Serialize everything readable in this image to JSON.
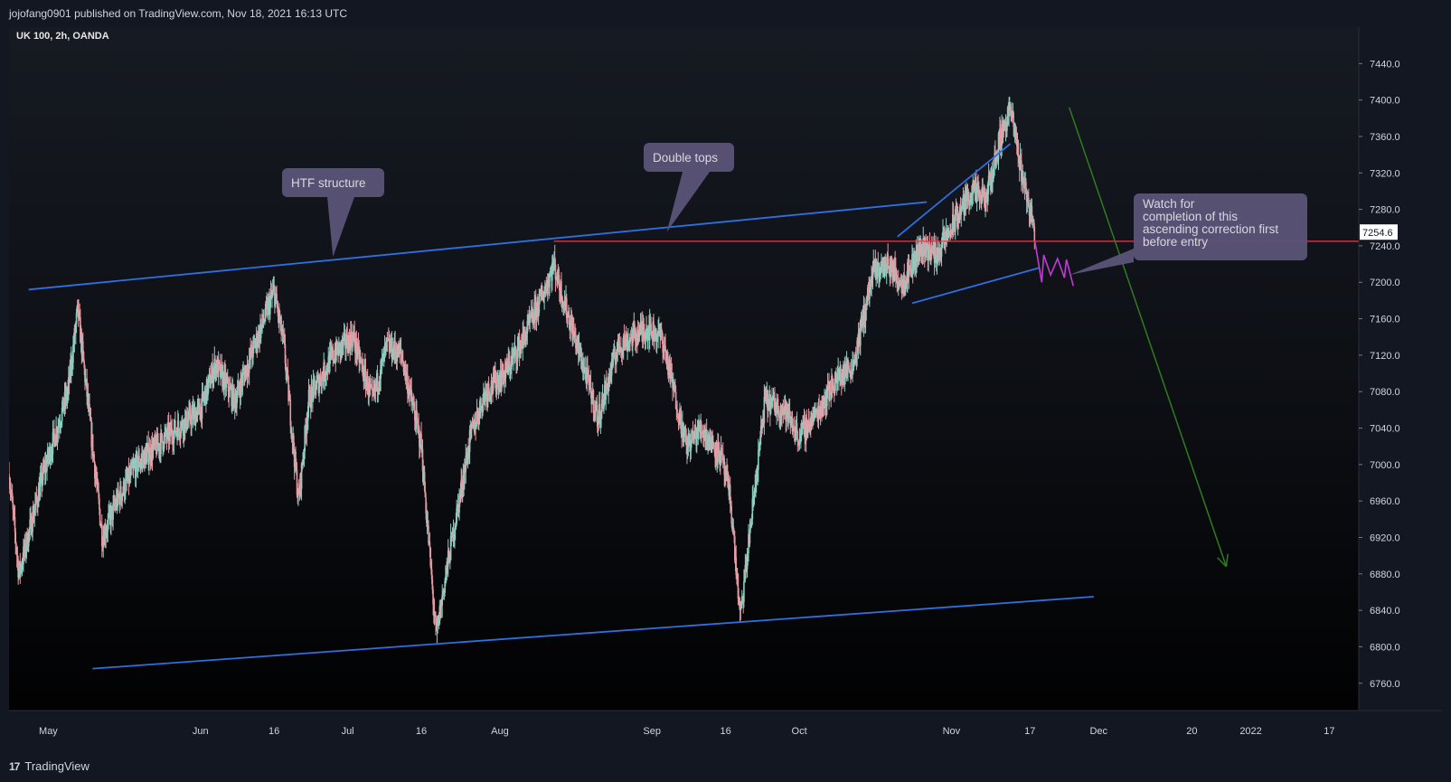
{
  "header": {
    "published": "jojofang0901 published on TradingView.com, Nov 18, 2021 16:13 UTC"
  },
  "footer": {
    "logo_glyph": "17",
    "brand": "TradingView"
  },
  "chart_data": {
    "type": "candlestick",
    "symbol": "UK 100, 2h, OANDA",
    "ylim": [
      6730,
      7480
    ],
    "y_ticks": [
      7440.0,
      7400.0,
      7360.0,
      7320.0,
      7280.0,
      7240.0,
      7200.0,
      7160.0,
      7120.0,
      7080.0,
      7040.0,
      7000.0,
      6960.0,
      6920.0,
      6880.0,
      6840.0,
      6800.0,
      6760.0
    ],
    "x_range": [
      "2021-04-23",
      "2022-01-23"
    ],
    "x_ticks": [
      {
        "label": "May",
        "date": "2021-05-01"
      },
      {
        "label": "Jun",
        "date": "2021-06-01"
      },
      {
        "label": "16",
        "date": "2021-06-16"
      },
      {
        "label": "Jul",
        "date": "2021-07-01"
      },
      {
        "label": "16",
        "date": "2021-07-16"
      },
      {
        "label": "Aug",
        "date": "2021-08-01"
      },
      {
        "label": "Sep",
        "date": "2021-09-01"
      },
      {
        "label": "16",
        "date": "2021-09-16"
      },
      {
        "label": "Oct",
        "date": "2021-10-01"
      },
      {
        "label": "Nov",
        "date": "2021-11-01"
      },
      {
        "label": "17",
        "date": "2021-11-17"
      },
      {
        "label": "Dec",
        "date": "2021-12-01"
      },
      {
        "label": "20",
        "date": "2021-12-20"
      },
      {
        "label": "2022",
        "date": "2022-01-01"
      },
      {
        "label": "17",
        "date": "2022-01-17"
      }
    ],
    "last_price": 7254.6,
    "last_price_label": "7254.6",
    "colors": {
      "up": "#8fcfc2",
      "down": "#e59aa3",
      "trendline": "#2f6fe0",
      "price_line": "#f23645",
      "projection": "#2e7d1f",
      "sketch": "#c33bd6",
      "callout": "#5b5377"
    },
    "price_path": [
      [
        "2021-04-23",
        6990
      ],
      [
        "2021-04-25",
        6880
      ],
      [
        "2021-04-30",
        6990
      ],
      [
        "2021-05-05",
        7080
      ],
      [
        "2021-05-07",
        7170
      ],
      [
        "2021-05-12",
        6920
      ],
      [
        "2021-05-15",
        6960
      ],
      [
        "2021-05-19",
        7000
      ],
      [
        "2021-05-25",
        7030
      ],
      [
        "2021-06-01",
        7060
      ],
      [
        "2021-06-04",
        7110
      ],
      [
        "2021-06-08",
        7070
      ],
      [
        "2021-06-14",
        7160
      ],
      [
        "2021-06-16",
        7190
      ],
      [
        "2021-06-18",
        7130
      ],
      [
        "2021-06-21",
        6960
      ],
      [
        "2021-06-23",
        7070
      ],
      [
        "2021-06-28",
        7120
      ],
      [
        "2021-07-02",
        7140
      ],
      [
        "2021-07-06",
        7070
      ],
      [
        "2021-07-09",
        7130
      ],
      [
        "2021-07-12",
        7120
      ],
      [
        "2021-07-16",
        7020
      ],
      [
        "2021-07-19",
        6810
      ],
      [
        "2021-07-21",
        6880
      ],
      [
        "2021-07-26",
        7030
      ],
      [
        "2021-07-29",
        7080
      ],
      [
        "2021-08-02",
        7100
      ],
      [
        "2021-08-06",
        7140
      ],
      [
        "2021-08-10",
        7190
      ],
      [
        "2021-08-12",
        7220
      ],
      [
        "2021-08-14",
        7180
      ],
      [
        "2021-08-19",
        7090
      ],
      [
        "2021-08-21",
        7050
      ],
      [
        "2021-08-25",
        7130
      ],
      [
        "2021-08-31",
        7150
      ],
      [
        "2021-09-03",
        7140
      ],
      [
        "2021-09-08",
        7020
      ],
      [
        "2021-09-11",
        7040
      ],
      [
        "2021-09-15",
        7010
      ],
      [
        "2021-09-17",
        6960
      ],
      [
        "2021-09-19",
        6830
      ],
      [
        "2021-09-21",
        6930
      ],
      [
        "2021-09-24",
        7070
      ],
      [
        "2021-09-28",
        7060
      ],
      [
        "2021-10-01",
        7030
      ],
      [
        "2021-10-05",
        7060
      ],
      [
        "2021-10-08",
        7090
      ],
      [
        "2021-10-12",
        7110
      ],
      [
        "2021-10-14",
        7160
      ],
      [
        "2021-10-16",
        7210
      ],
      [
        "2021-10-19",
        7220
      ],
      [
        "2021-10-22",
        7200
      ],
      [
        "2021-10-26",
        7240
      ],
      [
        "2021-10-29",
        7230
      ],
      [
        "2021-11-02",
        7270
      ],
      [
        "2021-11-05",
        7300
      ],
      [
        "2021-11-08",
        7290
      ],
      [
        "2021-11-11",
        7360
      ],
      [
        "2021-11-13",
        7390
      ],
      [
        "2021-11-15",
        7330
      ],
      [
        "2021-11-17",
        7280
      ],
      [
        "2021-11-18",
        7254.6
      ]
    ],
    "trendlines": [
      {
        "name": "htf-upper-trendline",
        "from": [
          "2021-04-27",
          7192
        ],
        "to": [
          "2021-10-27",
          7288
        ]
      },
      {
        "name": "htf-lower-trendline",
        "from": [
          "2021-05-10",
          6776
        ],
        "to": [
          "2021-11-30",
          6855
        ]
      },
      {
        "name": "rising-wedge-upper",
        "from": [
          "2021-10-21",
          7250
        ],
        "to": [
          "2021-11-13",
          7352
        ]
      },
      {
        "name": "rising-wedge-lower",
        "from": [
          "2021-10-24",
          7177
        ],
        "to": [
          "2021-11-19",
          7216
        ]
      }
    ],
    "horizontal_line": {
      "value": 7245,
      "from": "2021-08-12"
    },
    "projection": {
      "from": [
        "2021-11-25",
        7392
      ],
      "to": [
        "2021-12-27",
        6888
      ]
    },
    "sketch": [
      [
        "2021-11-18",
        7245
      ],
      [
        "2021-11-19",
        7200
      ],
      [
        "2021-11-19",
        7230
      ],
      [
        "2021-11-20",
        7208
      ],
      [
        "2021-11-21",
        7226
      ],
      [
        "2021-11-22",
        7205
      ],
      [
        "2021-11-22",
        7225
      ],
      [
        "2021-11-23",
        7196
      ]
    ],
    "callouts": [
      {
        "name": "htf-structure-callout",
        "text": "HTF structure",
        "tip": [
          "2021-06-28",
          7228
        ]
      },
      {
        "name": "double-tops-callout",
        "text": "Double tops",
        "tip": [
          "2021-09-04",
          7255
        ]
      },
      {
        "name": "watch-callout",
        "text": "Watch for completion of this ascending correction first before entry",
        "tip": [
          "2021-11-25",
          7208
        ]
      }
    ]
  }
}
